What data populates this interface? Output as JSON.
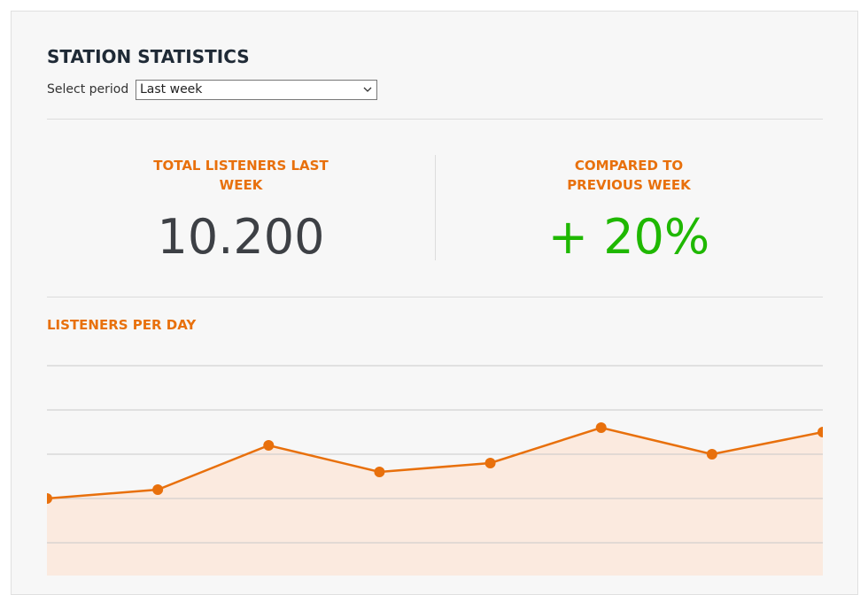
{
  "header": {
    "title": "STATION STATISTICS",
    "period_label": "Select period",
    "period_value": "Last week"
  },
  "stats": [
    {
      "label": "TOTAL LISTENERS LAST WEEK",
      "value": "10.200"
    },
    {
      "label": "COMPARED TO PREVIOUS WEEK",
      "value": "+ 20%"
    }
  ],
  "chart_data": {
    "type": "line",
    "title": "LISTENERS PER DAY",
    "values": [
      2.0,
      2.2,
      3.2,
      2.6,
      2.8,
      3.6,
      3.0,
      3.5
    ],
    "color": "#e8700c",
    "fill": "#fbeadf",
    "ylim": [
      0,
      5
    ],
    "yticks": [
      1,
      2,
      3,
      4,
      5
    ],
    "grid": true
  }
}
